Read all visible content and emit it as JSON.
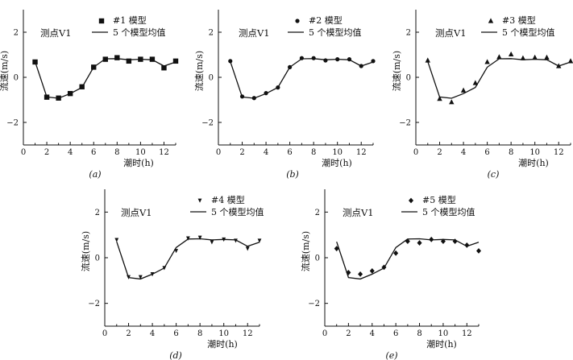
{
  "figure": {
    "x_label": "潮时(h)",
    "y_label": "流速(m/s)"
  },
  "chart_data": [
    {
      "type": "line",
      "caption": "(a)",
      "title": "测点V1",
      "marker": "square",
      "xlim": [
        0,
        13
      ],
      "ylim": [
        -3,
        3
      ],
      "xticks": [
        0,
        2,
        4,
        6,
        8,
        10,
        12
      ],
      "yticks": [
        -2,
        0,
        2
      ],
      "grid": false,
      "legend_position": "top-right",
      "x": [
        1,
        2,
        3,
        4,
        5,
        6,
        7,
        8,
        9,
        10,
        11,
        12,
        13
      ],
      "series": [
        {
          "name": "#1 模型",
          "style": "markers",
          "values": [
            0.68,
            -0.88,
            -0.92,
            -0.72,
            -0.42,
            0.45,
            0.8,
            0.87,
            0.72,
            0.8,
            0.8,
            0.42,
            0.72
          ]
        },
        {
          "name": "5 个模型均值",
          "style": "line",
          "values": [
            0.7,
            -0.87,
            -0.93,
            -0.72,
            -0.45,
            0.45,
            0.82,
            0.83,
            0.78,
            0.8,
            0.78,
            0.5,
            0.68
          ]
        }
      ]
    },
    {
      "type": "line",
      "caption": "(b)",
      "title": "测点V1",
      "marker": "circle",
      "xlim": [
        0,
        13
      ],
      "ylim": [
        -3,
        3
      ],
      "xticks": [
        0,
        2,
        4,
        6,
        8,
        10,
        12
      ],
      "yticks": [
        -2,
        0,
        2
      ],
      "grid": false,
      "legend_position": "top-right",
      "x": [
        1,
        2,
        3,
        4,
        5,
        6,
        7,
        8,
        9,
        10,
        11,
        12,
        13
      ],
      "series": [
        {
          "name": "#2 模型",
          "style": "markers",
          "values": [
            0.72,
            -0.85,
            -0.92,
            -0.7,
            -0.45,
            0.45,
            0.85,
            0.85,
            0.75,
            0.8,
            0.8,
            0.5,
            0.72
          ]
        },
        {
          "name": "5 个模型均值",
          "style": "line",
          "values": [
            0.7,
            -0.87,
            -0.93,
            -0.72,
            -0.45,
            0.45,
            0.82,
            0.83,
            0.78,
            0.8,
            0.78,
            0.5,
            0.68
          ]
        }
      ]
    },
    {
      "type": "line",
      "caption": "(c)",
      "title": "测点V1",
      "marker": "triangle",
      "xlim": [
        0,
        13
      ],
      "ylim": [
        -3,
        3
      ],
      "xticks": [
        0,
        2,
        4,
        6,
        8,
        10,
        12
      ],
      "yticks": [
        -2,
        0,
        2
      ],
      "grid": false,
      "legend_position": "top-right",
      "x": [
        1,
        2,
        3,
        4,
        5,
        6,
        7,
        8,
        9,
        10,
        11,
        12,
        13
      ],
      "series": [
        {
          "name": "#3 模型",
          "style": "markers",
          "values": [
            0.75,
            -0.95,
            -1.1,
            -0.58,
            -0.25,
            0.68,
            0.9,
            1.02,
            0.85,
            0.88,
            0.88,
            0.5,
            0.72
          ]
        },
        {
          "name": "5 个模型均值",
          "style": "line",
          "values": [
            0.7,
            -0.87,
            -0.93,
            -0.72,
            -0.45,
            0.45,
            0.82,
            0.83,
            0.78,
            0.8,
            0.78,
            0.5,
            0.68
          ]
        }
      ]
    },
    {
      "type": "line",
      "caption": "(d)",
      "title": "测点V1",
      "marker": "triangle-down",
      "xlim": [
        0,
        13
      ],
      "ylim": [
        -3,
        3
      ],
      "xticks": [
        0,
        2,
        4,
        6,
        8,
        10,
        12
      ],
      "yticks": [
        -2,
        0,
        2
      ],
      "grid": false,
      "legend_position": "top-right",
      "x": [
        1,
        2,
        3,
        4,
        5,
        6,
        7,
        8,
        9,
        10,
        11,
        12,
        13
      ],
      "series": [
        {
          "name": "#4 模型",
          "style": "markers",
          "values": [
            0.78,
            -0.85,
            -0.85,
            -0.72,
            -0.45,
            0.3,
            0.85,
            0.88,
            0.68,
            0.8,
            0.75,
            0.4,
            0.75
          ]
        },
        {
          "name": "5 个模型均值",
          "style": "line",
          "values": [
            0.7,
            -0.87,
            -0.93,
            -0.72,
            -0.45,
            0.45,
            0.82,
            0.83,
            0.78,
            0.8,
            0.78,
            0.5,
            0.68
          ]
        }
      ]
    },
    {
      "type": "line",
      "caption": "(e)",
      "title": "测点V1",
      "marker": "diamond",
      "xlim": [
        0,
        13
      ],
      "ylim": [
        -3,
        3
      ],
      "xticks": [
        0,
        2,
        4,
        6,
        8,
        10,
        12
      ],
      "yticks": [
        -2,
        0,
        2
      ],
      "grid": false,
      "legend_position": "top-right",
      "x": [
        1,
        2,
        3,
        4,
        5,
        6,
        7,
        8,
        9,
        10,
        11,
        12,
        13
      ],
      "series": [
        {
          "name": "#5 模型",
          "style": "markers",
          "values": [
            0.4,
            -0.65,
            -0.72,
            -0.58,
            -0.42,
            0.2,
            0.72,
            0.65,
            0.8,
            0.72,
            0.72,
            0.55,
            0.3
          ]
        },
        {
          "name": "5 个模型均值",
          "style": "line",
          "values": [
            0.7,
            -0.87,
            -0.93,
            -0.72,
            -0.45,
            0.45,
            0.82,
            0.83,
            0.78,
            0.8,
            0.78,
            0.5,
            0.68
          ]
        }
      ]
    }
  ]
}
